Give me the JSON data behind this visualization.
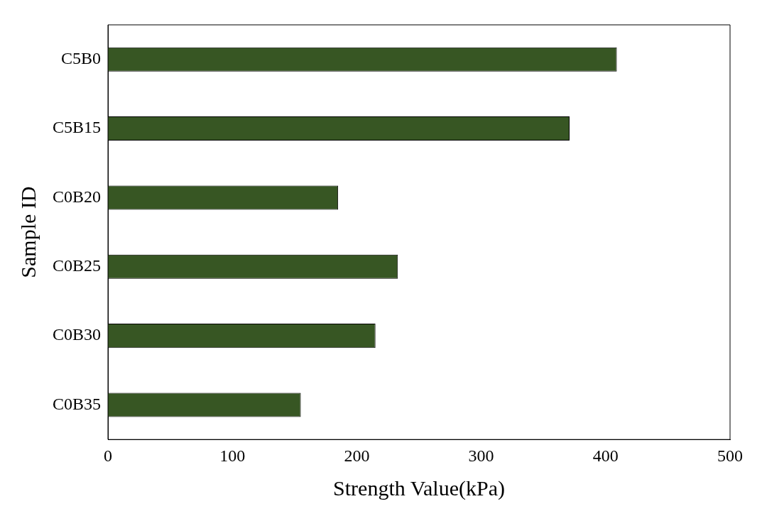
{
  "chart_data": {
    "type": "bar",
    "orientation": "horizontal",
    "xlabel": "Strength Value(kPa)",
    "ylabel": "Sample ID",
    "categories": [
      "C5B0",
      "C5B15",
      "C0B20",
      "C0B25",
      "C0B30",
      "C0B35"
    ],
    "values": [
      409,
      371,
      185,
      233,
      215,
      155
    ],
    "color": "#375623",
    "xlim": [
      0,
      500
    ],
    "xticks": [
      0,
      100,
      200,
      300,
      400,
      500
    ],
    "grid": false,
    "legend": false
  }
}
